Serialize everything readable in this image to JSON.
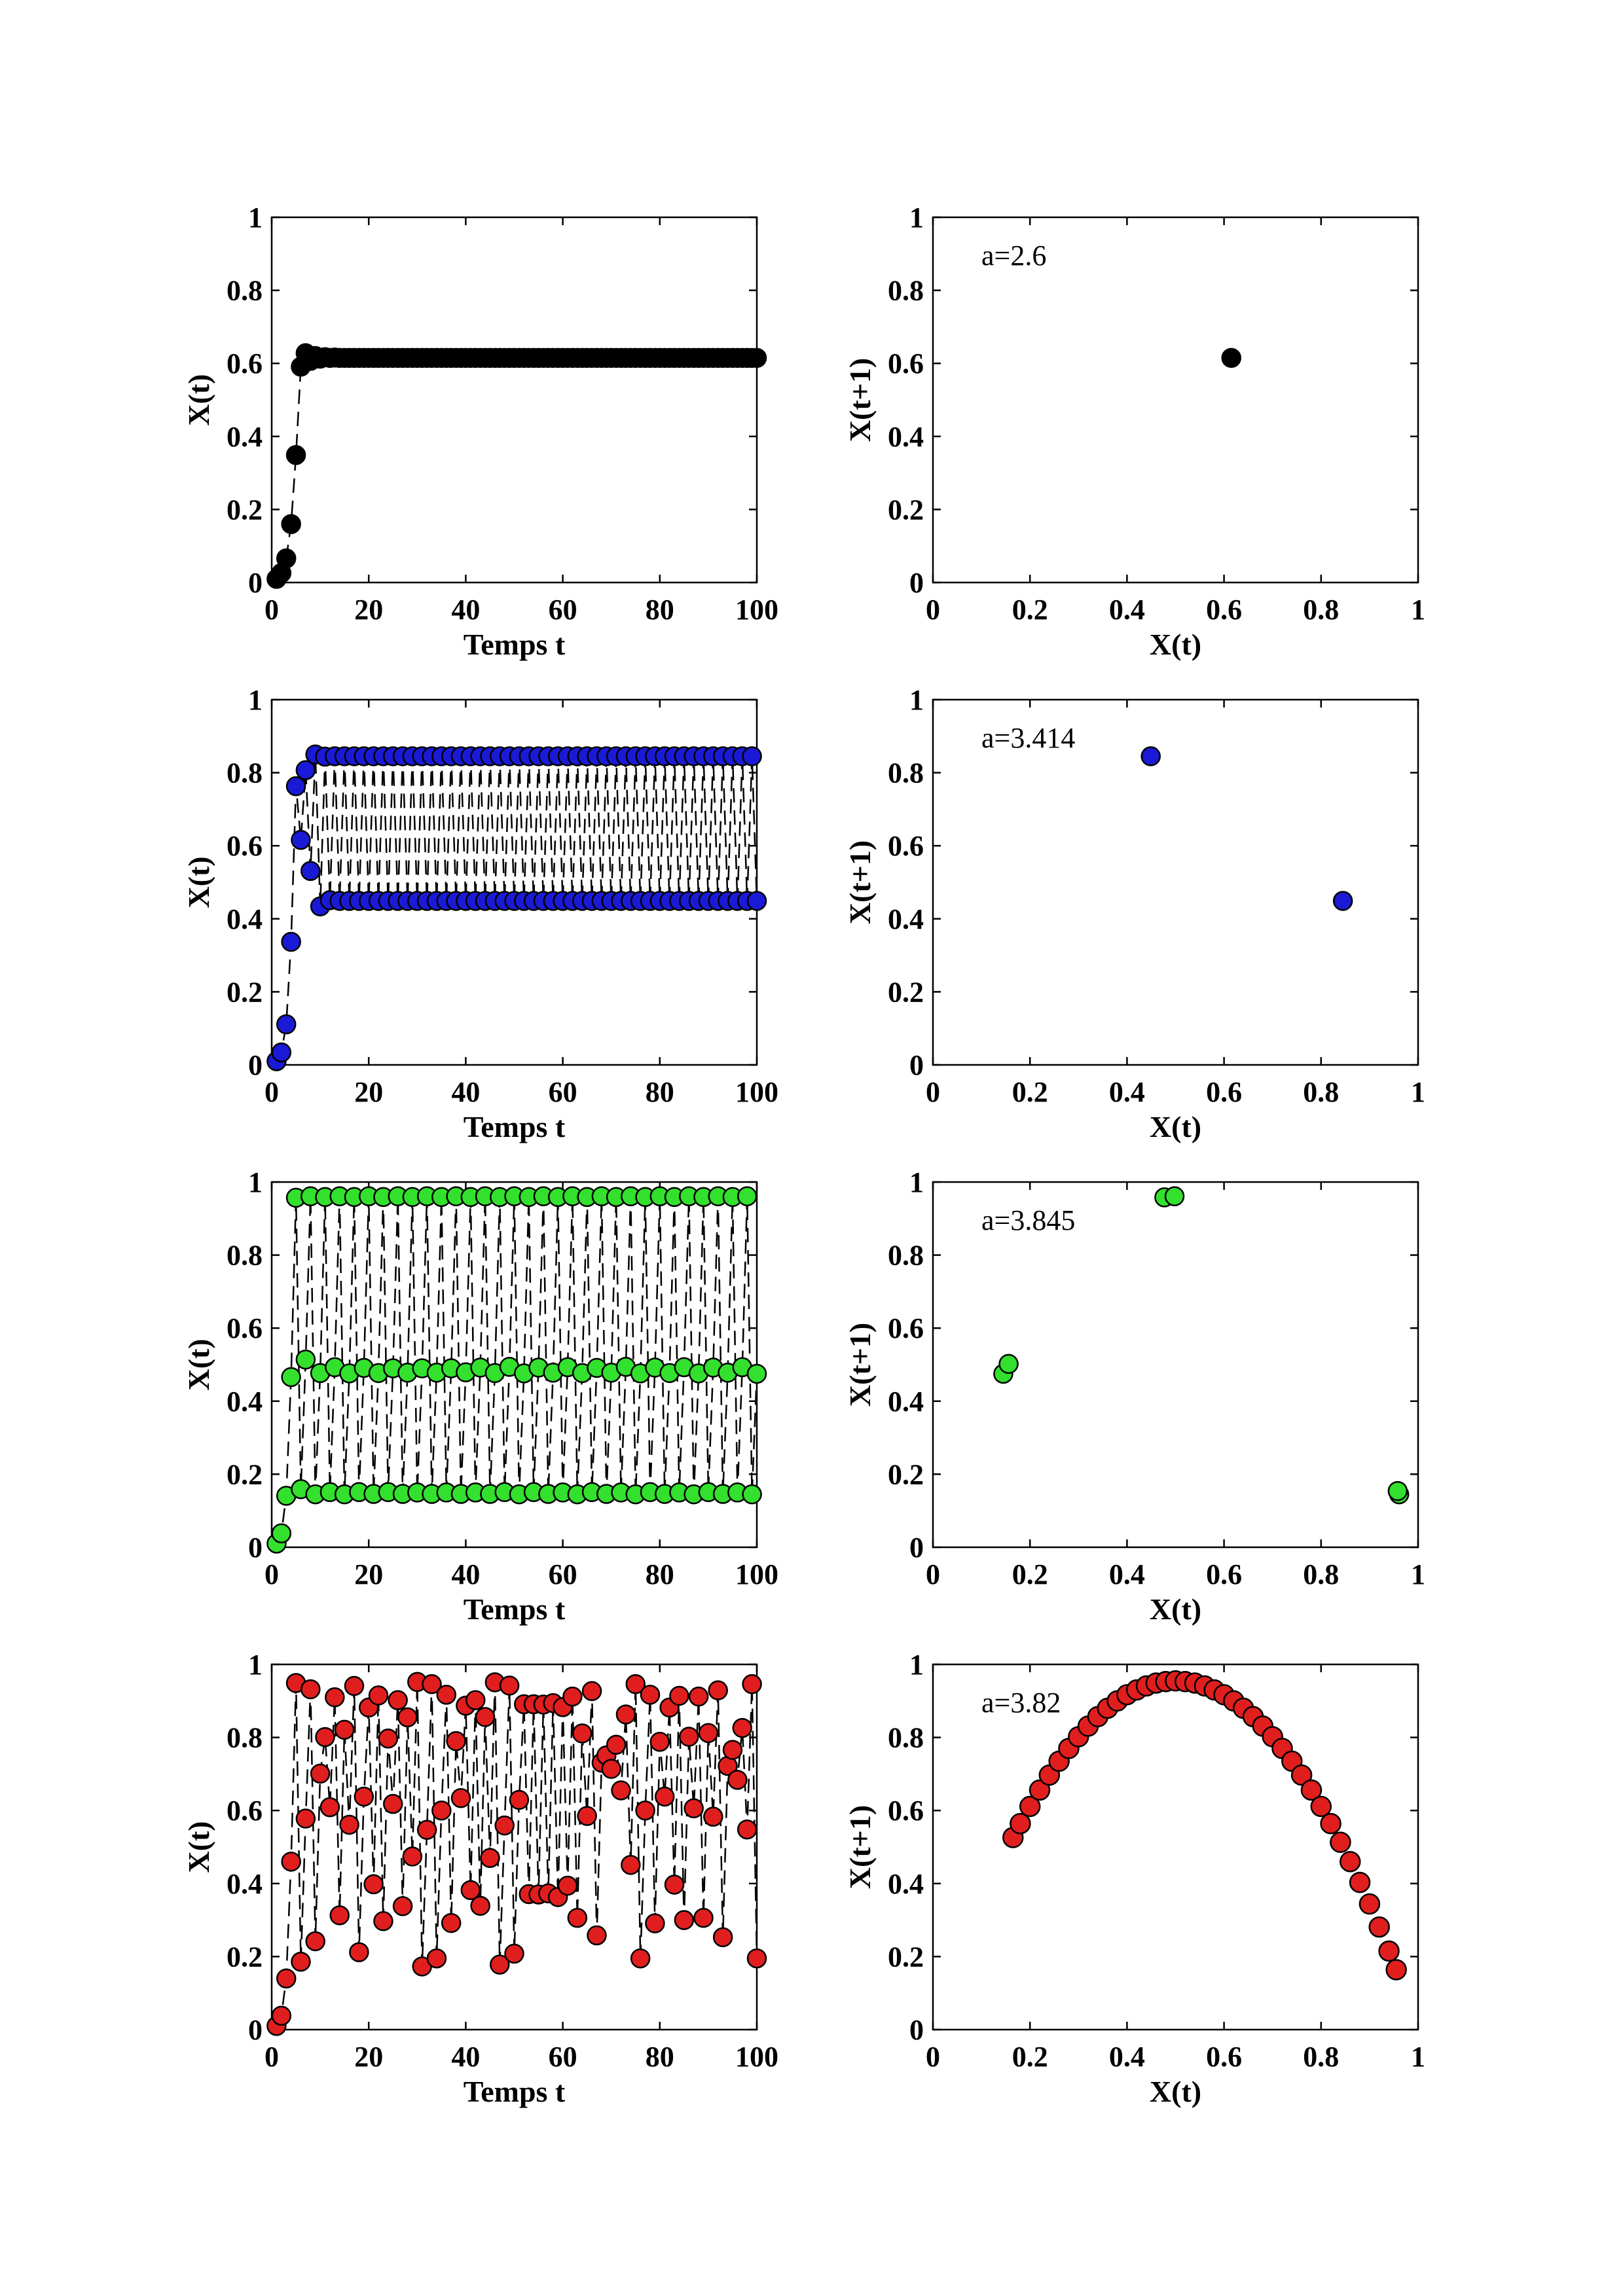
{
  "chart_data": [
    {
      "type": "line",
      "panel": "time-series-a2.6",
      "xlabel": "Temps t",
      "ylabel": "X(t)",
      "xlim": [
        0,
        100
      ],
      "ylim": [
        0,
        1
      ],
      "xticks": [
        "0",
        "20",
        "40",
        "60",
        "80",
        "100"
      ],
      "yticks": [
        "0",
        "0.2",
        "0.4",
        "0.6",
        "0.8",
        "1"
      ],
      "marker_color": "#000000",
      "line_style": "dashed",
      "x": [
        1,
        2,
        3,
        4,
        5,
        6,
        7,
        8,
        9,
        10,
        11,
        12,
        13,
        14,
        15,
        16,
        17,
        18,
        19,
        20,
        21,
        22,
        23,
        24,
        25,
        26,
        27,
        28,
        29,
        30,
        31,
        32,
        33,
        34,
        35,
        36,
        37,
        38,
        39,
        40,
        41,
        42,
        43,
        44,
        45,
        46,
        47,
        48,
        49,
        50,
        51,
        52,
        53,
        54,
        55,
        56,
        57,
        58,
        59,
        60,
        61,
        62,
        63,
        64,
        65,
        66,
        67,
        68,
        69,
        70,
        71,
        72,
        73,
        74,
        75,
        76,
        77,
        78,
        79,
        80,
        81,
        82,
        83,
        84,
        85,
        86,
        87,
        88,
        89,
        90,
        91,
        92,
        93,
        94,
        95,
        96,
        97,
        98,
        99,
        100
      ],
      "y": [
        0.01,
        0.026,
        0.066,
        0.16,
        0.349,
        0.591,
        0.628,
        0.607,
        0.62,
        0.613,
        0.617,
        0.615,
        0.616,
        0.615,
        0.615,
        0.615,
        0.615,
        0.615,
        0.615,
        0.615,
        0.615,
        0.615,
        0.615,
        0.615,
        0.615,
        0.615,
        0.615,
        0.615,
        0.615,
        0.615,
        0.615,
        0.615,
        0.615,
        0.615,
        0.615,
        0.615,
        0.615,
        0.615,
        0.615,
        0.615,
        0.615,
        0.615,
        0.615,
        0.615,
        0.615,
        0.615,
        0.615,
        0.615,
        0.615,
        0.615,
        0.615,
        0.615,
        0.615,
        0.615,
        0.615,
        0.615,
        0.615,
        0.615,
        0.615,
        0.615,
        0.615,
        0.615,
        0.615,
        0.615,
        0.615,
        0.615,
        0.615,
        0.615,
        0.615,
        0.615,
        0.615,
        0.615,
        0.615,
        0.615,
        0.615,
        0.615,
        0.615,
        0.615,
        0.615,
        0.615,
        0.615,
        0.615,
        0.615,
        0.615,
        0.615,
        0.615,
        0.615,
        0.615,
        0.615,
        0.615,
        0.615,
        0.615,
        0.615,
        0.615,
        0.615,
        0.615,
        0.615,
        0.615,
        0.615,
        0.615
      ]
    },
    {
      "type": "scatter",
      "panel": "return-map-a2.6",
      "annotation": "a=2.6",
      "xlabel": "X(t)",
      "ylabel": "X(t+1)",
      "xlim": [
        0,
        1
      ],
      "ylim": [
        0,
        1
      ],
      "xticks": [
        "0",
        "0.2",
        "0.4",
        "0.6",
        "0.8",
        "1"
      ],
      "yticks": [
        "0",
        "0.2",
        "0.4",
        "0.6",
        "0.8",
        "1"
      ],
      "marker_color": "#000000",
      "x": [
        0.615
      ],
      "y": [
        0.615
      ]
    },
    {
      "type": "line",
      "panel": "time-series-a3.414",
      "xlabel": "Temps t",
      "ylabel": "X(t)",
      "xlim": [
        0,
        100
      ],
      "ylim": [
        0,
        1
      ],
      "xticks": [
        "0",
        "20",
        "40",
        "60",
        "80",
        "100"
      ],
      "yticks": [
        "0",
        "0.2",
        "0.4",
        "0.6",
        "0.8",
        "1"
      ],
      "marker_color": "#1a1ad6",
      "line_style": "dashed",
      "x": [
        1,
        2,
        3,
        4,
        5,
        6,
        7,
        8,
        9,
        10,
        11,
        12,
        13,
        14,
        15,
        16,
        17,
        18,
        19,
        20,
        21,
        22,
        23,
        24,
        25,
        26,
        27,
        28,
        29,
        30,
        31,
        32,
        33,
        34,
        35,
        36,
        37,
        38,
        39,
        40,
        41,
        42,
        43,
        44,
        45,
        46,
        47,
        48,
        49,
        50,
        51,
        52,
        53,
        54,
        55,
        56,
        57,
        58,
        59,
        60,
        61,
        62,
        63,
        64,
        65,
        66,
        67,
        68,
        69,
        70,
        71,
        72,
        73,
        74,
        75,
        76,
        77,
        78,
        79,
        80,
        81,
        82,
        83,
        84,
        85,
        86,
        87,
        88,
        89,
        90,
        91,
        92,
        93,
        94,
        95,
        96,
        97,
        98,
        99,
        100
      ],
      "y": [
        0.01,
        0.034,
        0.111,
        0.337,
        0.763,
        0.616,
        0.807,
        0.531,
        0.85,
        0.434,
        0.844,
        0.451,
        0.845,
        0.449,
        0.845,
        0.449,
        0.845,
        0.449,
        0.845,
        0.449,
        0.845,
        0.449,
        0.845,
        0.449,
        0.845,
        0.449,
        0.845,
        0.449,
        0.845,
        0.449,
        0.845,
        0.449,
        0.845,
        0.449,
        0.845,
        0.449,
        0.845,
        0.449,
        0.845,
        0.449,
        0.845,
        0.449,
        0.845,
        0.449,
        0.845,
        0.449,
        0.845,
        0.449,
        0.845,
        0.449,
        0.845,
        0.449,
        0.845,
        0.449,
        0.845,
        0.449,
        0.845,
        0.449,
        0.845,
        0.449,
        0.845,
        0.449,
        0.845,
        0.449,
        0.845,
        0.449,
        0.845,
        0.449,
        0.845,
        0.449,
        0.845,
        0.449,
        0.845,
        0.449,
        0.845,
        0.449,
        0.845,
        0.449,
        0.845,
        0.449,
        0.845,
        0.449,
        0.845,
        0.449,
        0.845,
        0.449,
        0.845,
        0.449,
        0.845,
        0.449,
        0.845,
        0.449,
        0.845,
        0.449,
        0.845,
        0.449,
        0.845,
        0.449,
        0.845,
        0.449
      ]
    },
    {
      "type": "scatter",
      "panel": "return-map-a3.414",
      "annotation": "a=3.414",
      "xlabel": "X(t)",
      "ylabel": "X(t+1)",
      "xlim": [
        0,
        1
      ],
      "ylim": [
        0,
        1
      ],
      "xticks": [
        "0",
        "0.2",
        "0.4",
        "0.6",
        "0.8",
        "1"
      ],
      "yticks": [
        "0",
        "0.2",
        "0.4",
        "0.6",
        "0.8",
        "1"
      ],
      "marker_color": "#1a1ad6",
      "x": [
        0.449,
        0.845
      ],
      "y": [
        0.845,
        0.449
      ]
    },
    {
      "type": "line",
      "panel": "time-series-a3.845",
      "xlabel": "Temps t",
      "ylabel": "X(t)",
      "xlim": [
        0,
        100
      ],
      "ylim": [
        0,
        1
      ],
      "xticks": [
        "0",
        "20",
        "40",
        "60",
        "80",
        "100"
      ],
      "yticks": [
        "0",
        "0.2",
        "0.4",
        "0.6",
        "0.8",
        "1"
      ],
      "marker_color": "#33e02e",
      "line_style": "dashed",
      "x": [
        1,
        2,
        3,
        4,
        5,
        6,
        7,
        8,
        9,
        10,
        11,
        12,
        13,
        14,
        15,
        16,
        17,
        18,
        19,
        20,
        21,
        22,
        23,
        24,
        25,
        26,
        27,
        28,
        29,
        30,
        31,
        32,
        33,
        34,
        35,
        36,
        37,
        38,
        39,
        40,
        41,
        42,
        43,
        44,
        45,
        46,
        47,
        48,
        49,
        50,
        51,
        52,
        53,
        54,
        55,
        56,
        57,
        58,
        59,
        60,
        61,
        62,
        63,
        64,
        65,
        66,
        67,
        68,
        69,
        70,
        71,
        72,
        73,
        74,
        75,
        76,
        77,
        78,
        79,
        80,
        81,
        82,
        83,
        84,
        85,
        86,
        87,
        88,
        89,
        90,
        91,
        92,
        93,
        94,
        95,
        96,
        97,
        98,
        99,
        100
      ],
      "y": [
        0.01,
        0.038,
        0.141,
        0.466,
        0.957,
        0.159,
        0.514,
        0.961,
        0.145,
        0.477,
        0.959,
        0.151,
        0.493,
        0.961,
        0.145,
        0.476,
        0.959,
        0.151,
        0.491,
        0.961,
        0.146,
        0.477,
        0.959,
        0.151,
        0.49,
        0.961,
        0.146,
        0.478,
        0.959,
        0.15,
        0.49,
        0.961,
        0.146,
        0.478,
        0.959,
        0.15,
        0.49,
        0.961,
        0.146,
        0.479,
        0.959,
        0.15,
        0.492,
        0.961,
        0.146,
        0.477,
        0.959,
        0.151,
        0.494,
        0.961,
        0.145,
        0.476,
        0.959,
        0.151,
        0.492,
        0.961,
        0.146,
        0.478,
        0.959,
        0.15,
        0.493,
        0.961,
        0.145,
        0.477,
        0.959,
        0.151,
        0.491,
        0.961,
        0.146,
        0.478,
        0.959,
        0.15,
        0.494,
        0.961,
        0.145,
        0.476,
        0.959,
        0.151,
        0.492,
        0.961,
        0.146,
        0.477,
        0.959,
        0.15,
        0.493,
        0.961,
        0.145,
        0.476,
        0.959,
        0.151,
        0.492,
        0.961,
        0.146,
        0.478,
        0.959,
        0.15,
        0.493,
        0.961,
        0.145,
        0.475
      ]
    },
    {
      "type": "scatter",
      "panel": "return-map-a3.845",
      "annotation": "a=3.845",
      "xlabel": "X(t)",
      "ylabel": "X(t+1)",
      "xlim": [
        0,
        1
      ],
      "ylim": [
        0,
        1
      ],
      "xticks": [
        "0",
        "0.2",
        "0.4",
        "0.6",
        "0.8",
        "1"
      ],
      "yticks": [
        "0",
        "0.2",
        "0.4",
        "0.6",
        "0.8",
        "1"
      ],
      "marker_color": "#33e02e",
      "x": [
        0.145,
        0.156,
        0.477,
        0.498,
        0.961,
        0.958
      ],
      "y": [
        0.475,
        0.502,
        0.958,
        0.961,
        0.145,
        0.154
      ]
    },
    {
      "type": "line",
      "panel": "time-series-a3.82",
      "xlabel": "Temps t",
      "ylabel": "X(t)",
      "xlim": [
        0,
        100
      ],
      "ylim": [
        0,
        1
      ],
      "xticks": [
        "0",
        "20",
        "40",
        "60",
        "80",
        "100"
      ],
      "yticks": [
        "0",
        "0.2",
        "0.4",
        "0.6",
        "0.8",
        "1"
      ],
      "marker_color": "#e01e1e",
      "line_style": "dashed",
      "x": [
        1,
        2,
        3,
        4,
        5,
        6,
        7,
        8,
        9,
        10,
        11,
        12,
        13,
        14,
        15,
        16,
        17,
        18,
        19,
        20,
        21,
        22,
        23,
        24,
        25,
        26,
        27,
        28,
        29,
        30,
        31,
        32,
        33,
        34,
        35,
        36,
        37,
        38,
        39,
        40,
        41,
        42,
        43,
        44,
        45,
        46,
        47,
        48,
        49,
        50,
        51,
        52,
        53,
        54,
        55,
        56,
        57,
        58,
        59,
        60,
        61,
        62,
        63,
        64,
        65,
        66,
        67,
        68,
        69,
        70,
        71,
        72,
        73,
        74,
        75,
        76,
        77,
        78,
        79,
        80,
        81,
        82,
        83,
        84,
        85,
        86,
        87,
        88,
        89,
        90,
        91,
        92,
        93,
        94,
        95,
        96,
        97,
        98,
        99,
        100
      ],
      "y": [
        0.01,
        0.038,
        0.14,
        0.46,
        0.949,
        0.186,
        0.578,
        0.932,
        0.242,
        0.701,
        0.801,
        0.609,
        0.91,
        0.313,
        0.821,
        0.561,
        0.941,
        0.212,
        0.638,
        0.882,
        0.398,
        0.915,
        0.297,
        0.797,
        0.618,
        0.902,
        0.338,
        0.855,
        0.474,
        0.952,
        0.173,
        0.547,
        0.946,
        0.195,
        0.6,
        0.917,
        0.292,
        0.79,
        0.634,
        0.887,
        0.382,
        0.902,
        0.339,
        0.856,
        0.47,
        0.951,
        0.178,
        0.559,
        0.942,
        0.208,
        0.629,
        0.891,
        0.371,
        0.891,
        0.37,
        0.89,
        0.373,
        0.894,
        0.363,
        0.883,
        0.394,
        0.912,
        0.306,
        0.811,
        0.585,
        0.927,
        0.258,
        0.731,
        0.751,
        0.714,
        0.78,
        0.655,
        0.863,
        0.451,
        0.946,
        0.195,
        0.6,
        0.917,
        0.291,
        0.788,
        0.638,
        0.882,
        0.397,
        0.914,
        0.3,
        0.802,
        0.606,
        0.912,
        0.306,
        0.812,
        0.583,
        0.929,
        0.253,
        0.722,
        0.766,
        0.684,
        0.826,
        0.548,
        0.946,
        0.195
      ]
    },
    {
      "type": "scatter",
      "panel": "return-map-a3.82",
      "annotation": "a=3.82",
      "xlabel": "X(t)",
      "ylabel": "X(t+1)",
      "xlim": [
        0,
        1
      ],
      "ylim": [
        0,
        1
      ],
      "xticks": [
        "0",
        "0.2",
        "0.4",
        "0.6",
        "0.8",
        "1"
      ],
      "yticks": [
        "0",
        "0.2",
        "0.4",
        "0.6",
        "0.8",
        "1"
      ],
      "marker_color": "#e01e1e",
      "x": [
        0.165,
        0.18,
        0.2,
        0.22,
        0.24,
        0.26,
        0.28,
        0.3,
        0.32,
        0.34,
        0.36,
        0.38,
        0.4,
        0.42,
        0.44,
        0.46,
        0.48,
        0.5,
        0.52,
        0.54,
        0.56,
        0.58,
        0.6,
        0.62,
        0.64,
        0.66,
        0.68,
        0.7,
        0.72,
        0.74,
        0.76,
        0.78,
        0.8,
        0.82,
        0.84,
        0.86,
        0.88,
        0.9,
        0.92,
        0.94,
        0.955
      ],
      "y": [
        0.526,
        0.564,
        0.611,
        0.656,
        0.697,
        0.735,
        0.77,
        0.802,
        0.831,
        0.857,
        0.88,
        0.9,
        0.917,
        0.93,
        0.941,
        0.949,
        0.953,
        0.955,
        0.953,
        0.949,
        0.941,
        0.93,
        0.917,
        0.9,
        0.88,
        0.857,
        0.831,
        0.802,
        0.77,
        0.735,
        0.697,
        0.656,
        0.611,
        0.564,
        0.513,
        0.46,
        0.403,
        0.344,
        0.281,
        0.215,
        0.164
      ]
    }
  ]
}
